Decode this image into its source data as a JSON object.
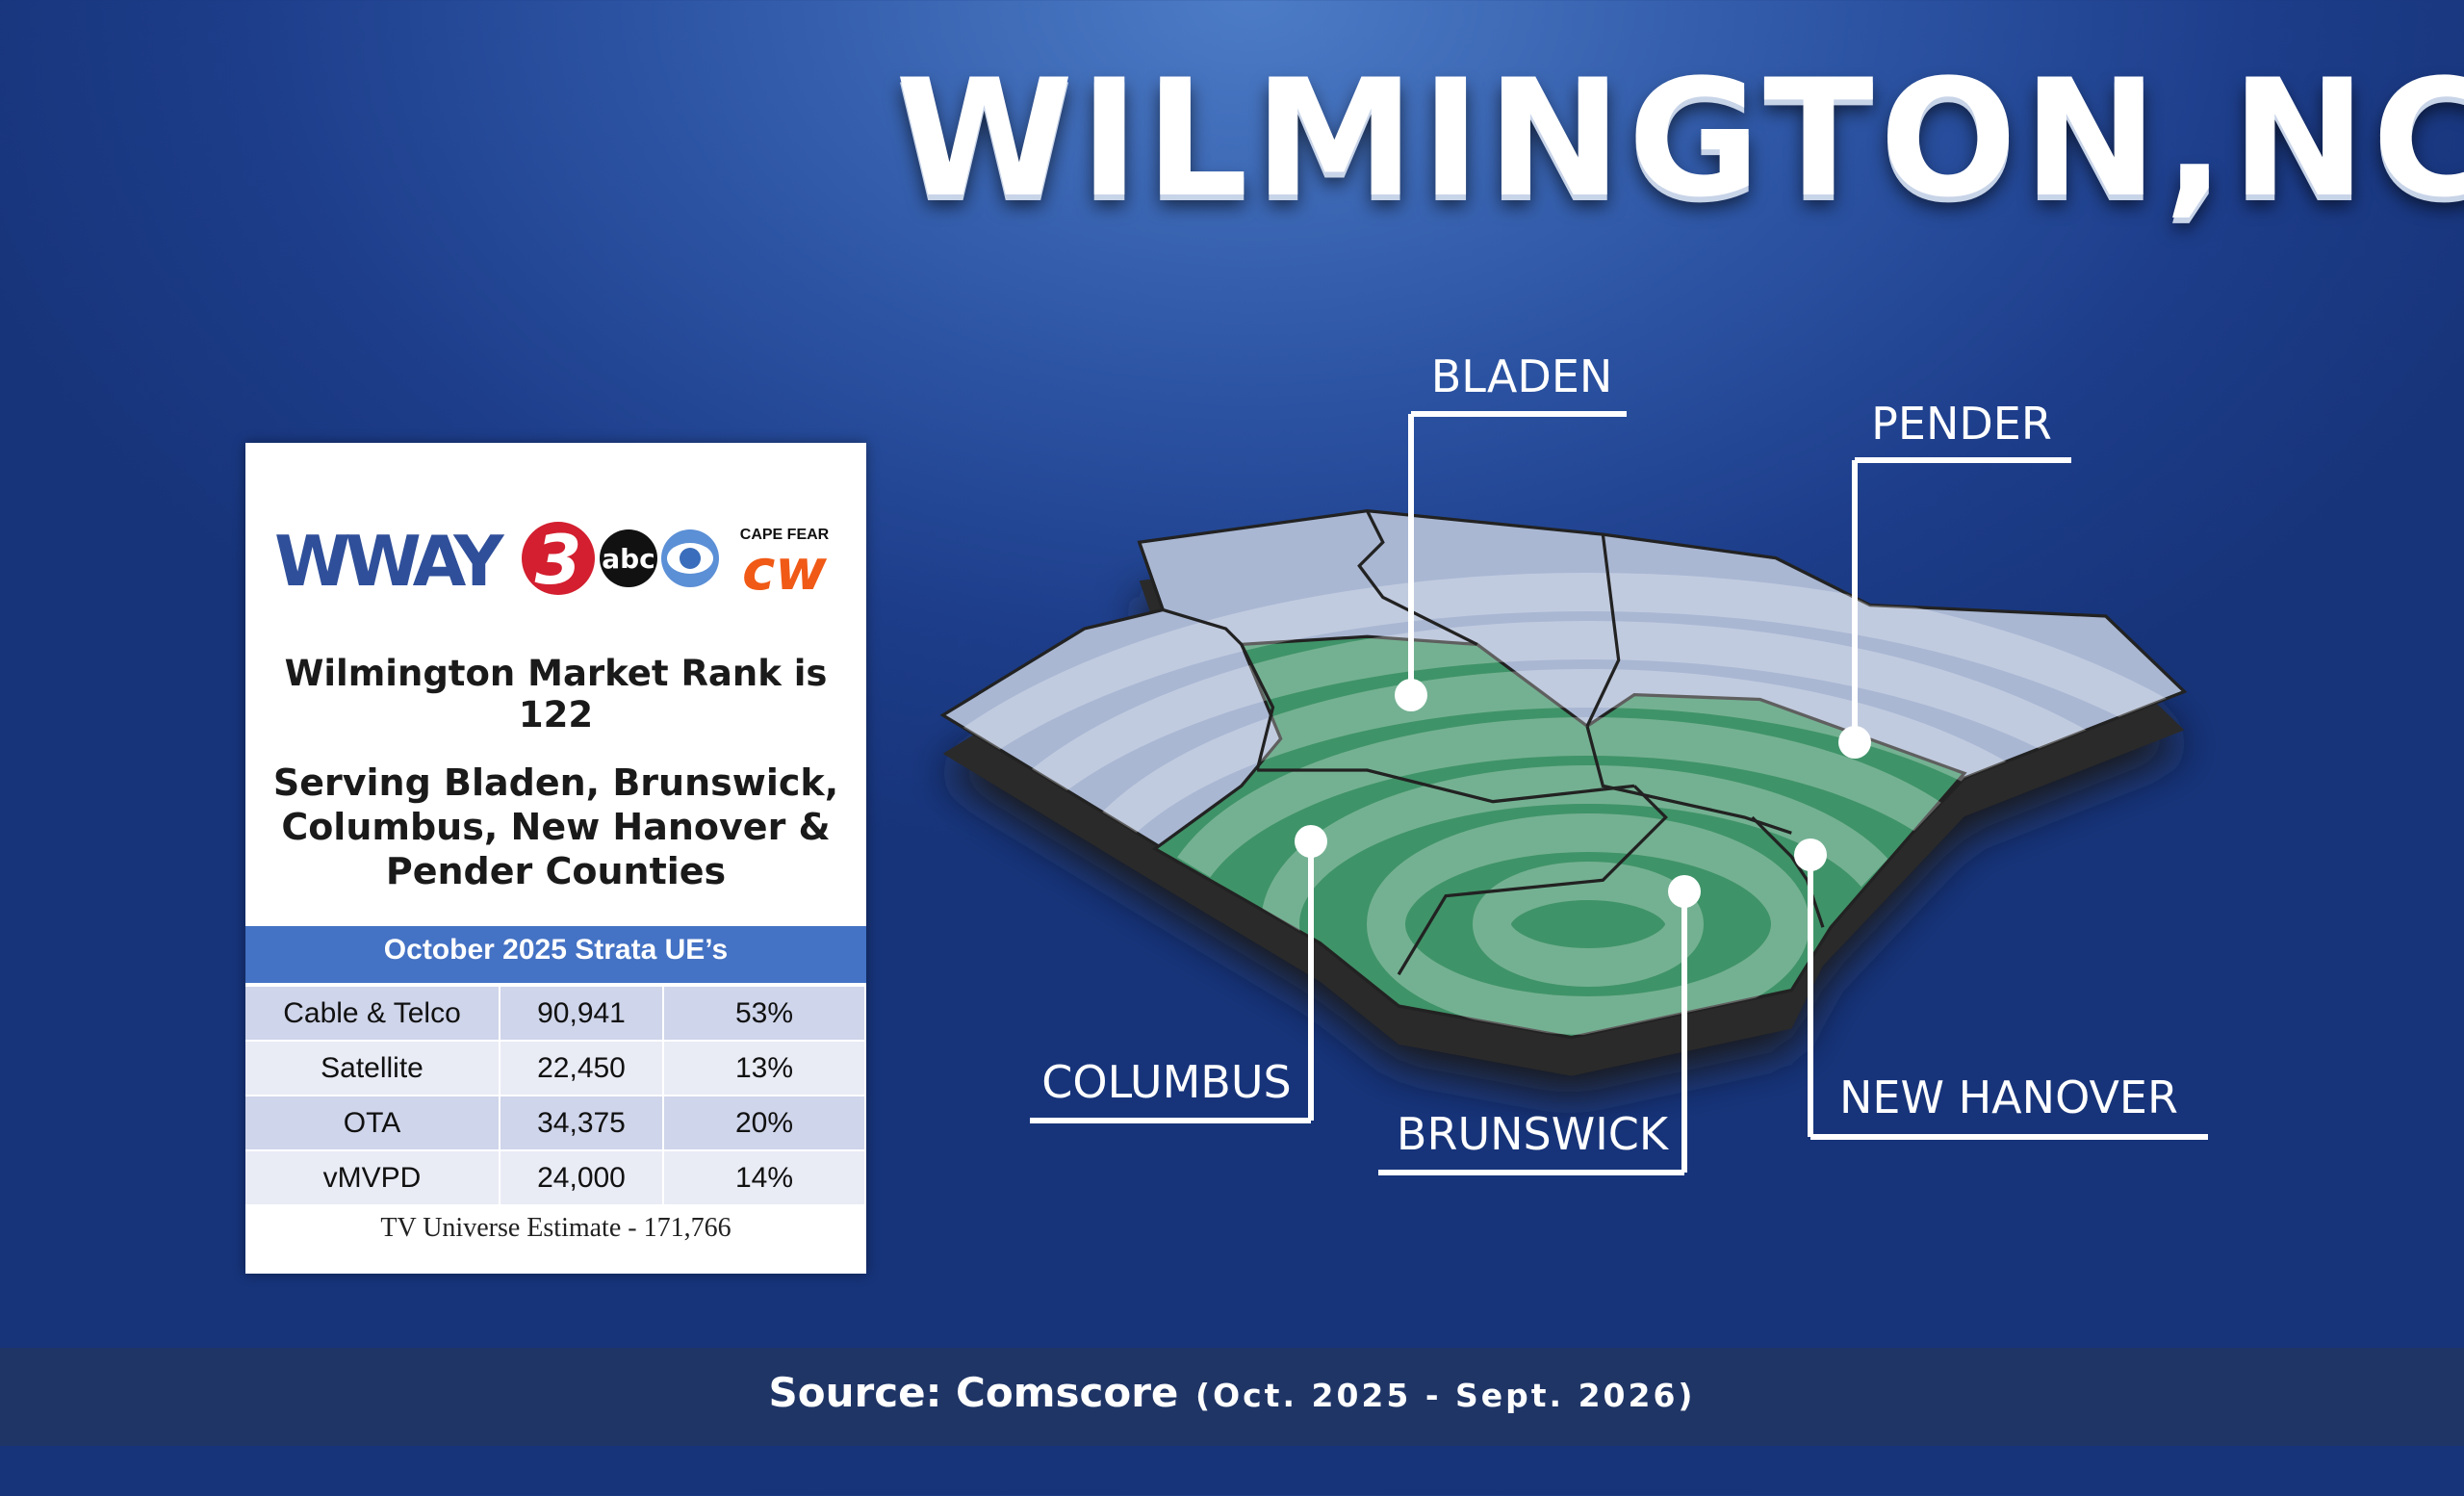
{
  "header": {
    "title": "WILMINGTON,NC"
  },
  "card": {
    "logo": {
      "station": "WWAY",
      "channel": "3",
      "network": "abc",
      "cw_top": "CAPE FEAR",
      "cw": "cw"
    },
    "rank": "Wilmington Market Rank is 122",
    "serving": [
      "Serving Bladen, Brunswick,",
      "Columbus, New Hanover &",
      "Pender Counties"
    ],
    "table": {
      "title": "October 2025 Strata UE’s",
      "rows": [
        [
          "Cable & Telco",
          "90,941",
          "53%"
        ],
        [
          "Satellite",
          "22,450",
          "13%"
        ],
        [
          "OTA",
          "34,375",
          "20%"
        ],
        [
          "vMVPD",
          "24,000",
          "14%"
        ]
      ]
    },
    "footer": "TV Universe Estimate - 171,766"
  },
  "map": {
    "counties": [
      "BLADEN",
      "PENDER",
      "COLUMBUS",
      "BRUNSWICK",
      "NEW HANOVER"
    ]
  },
  "source": {
    "label": "Source: Comscore",
    "period": "(Oct. 2025 - Sept. 2026)"
  }
}
